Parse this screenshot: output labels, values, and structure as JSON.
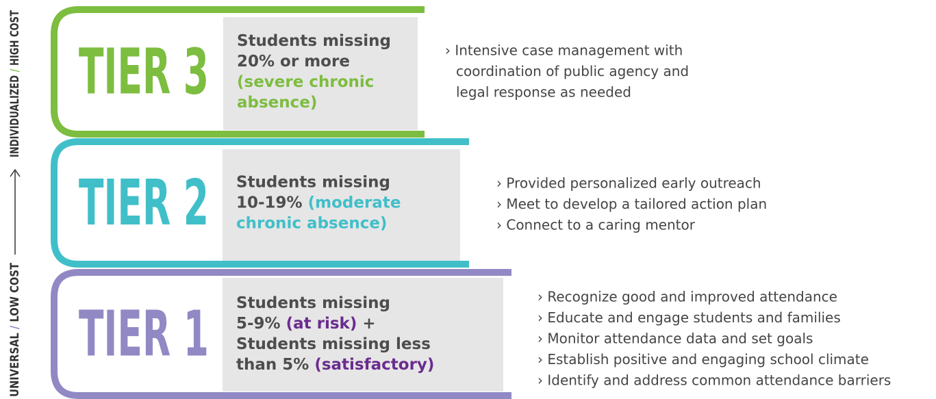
{
  "side_label": {
    "low": [
      {
        "text": "UNIVERSAL "
      },
      {
        "text": "/",
        "accent": true
      },
      {
        "text": " LOW COST"
      }
    ],
    "high": [
      {
        "text": "INDIVIDUALIZED "
      },
      {
        "text": "/",
        "accent": true
      },
      {
        "text": " HIGH COST"
      }
    ]
  },
  "tiers": [
    {
      "label": "TIER 3",
      "color": "#7dbd3f",
      "accent_color": "#7dbd3f",
      "description": [
        {
          "text": "Students missing"
        },
        {
          "text": "20% or more"
        },
        {
          "text": "(severe chronic",
          "accent": true
        },
        {
          "text": "absence)",
          "accent": true
        }
      ],
      "bullets": [
        "› Intensive case management with",
        "coordination of public agency and",
        "legal response as needed"
      ]
    },
    {
      "label": "TIER 2",
      "color": "#40bfc9",
      "accent_color": "#40bfc9",
      "description": [
        {
          "text": "Students missing"
        },
        {
          "text": "10-19% "
        },
        {
          "text": "(moderate",
          "accent": true
        },
        {
          "text": "chronic absence)",
          "accent": true
        }
      ],
      "bullets": [
        "› Provided personalized early outreach",
        "› Meet to develop a tailored action plan",
        "› Connect to a caring mentor"
      ]
    },
    {
      "label": "TIER 1",
      "color": "#9189c4",
      "accent_color": "#6a2c8e",
      "description": [
        {
          "text": "Students missing"
        },
        {
          "text": "5-9% "
        },
        {
          "text": "(at risk)",
          "accent": true
        },
        {
          "text": " +"
        },
        {
          "text": "Students missing less"
        },
        {
          "text": "than 5% "
        },
        {
          "text": "(satisfactory)",
          "accent": true
        }
      ],
      "bullets": [
        "› Recognize good and improved attendance",
        "› Educate and engage students and families",
        "› Monitor attendance data and set goals",
        "› Establish positive and engaging school climate",
        "› Identify and address common attendance barriers"
      ]
    }
  ]
}
